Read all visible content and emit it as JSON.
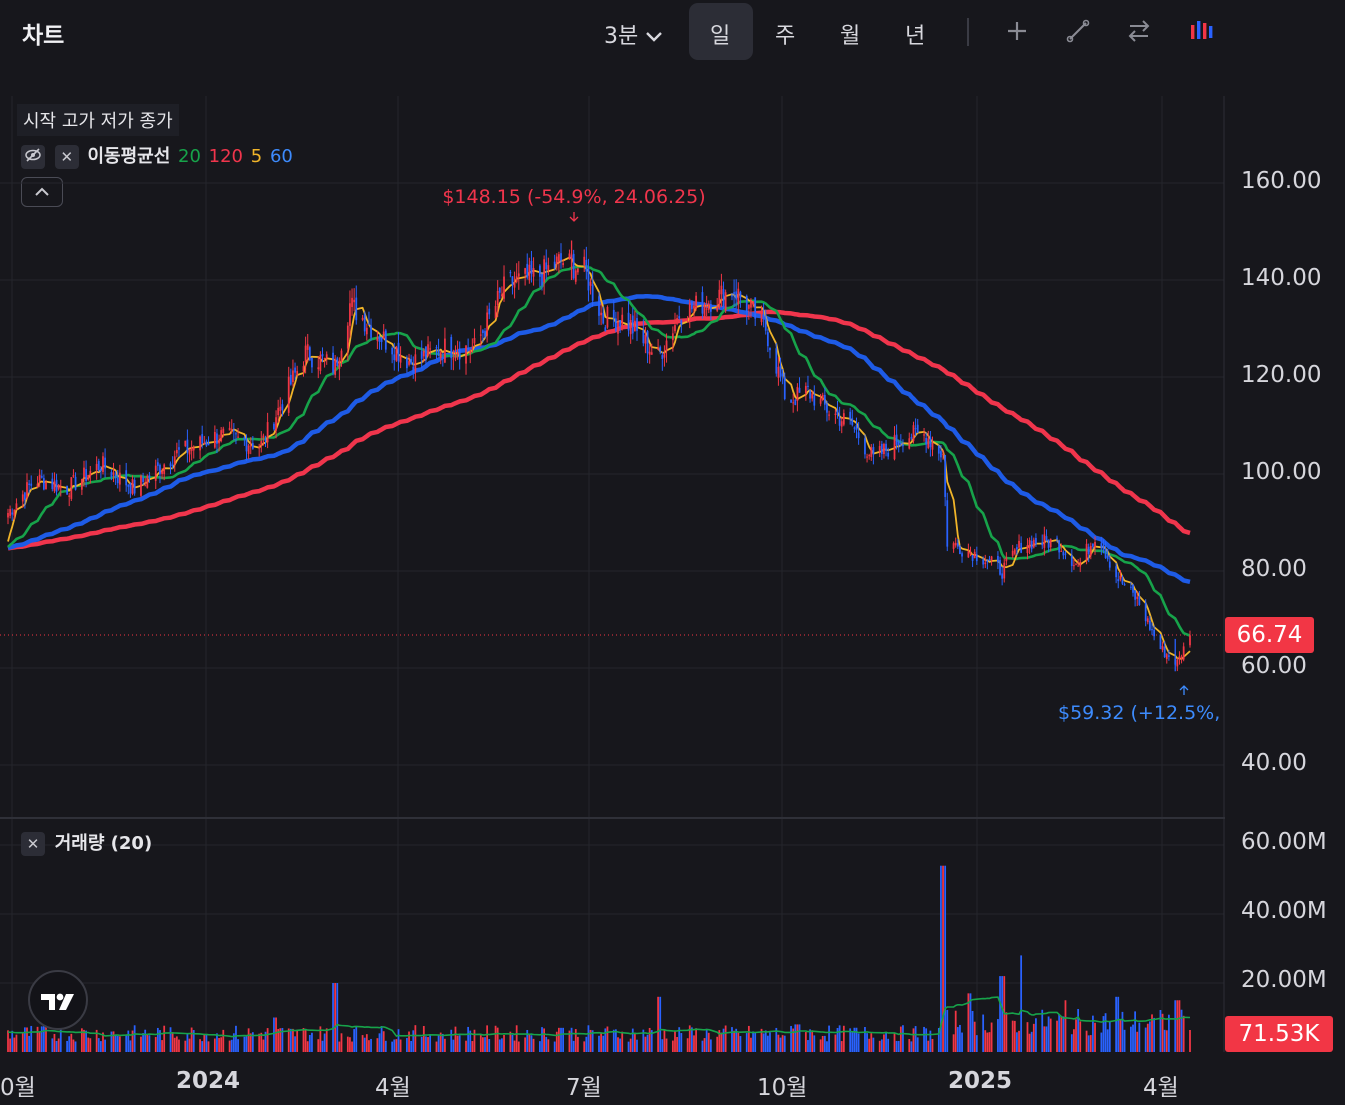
{
  "header": {
    "title": "차트",
    "interval_label": "3분",
    "periods": [
      "일",
      "주",
      "월",
      "년"
    ],
    "active_period": "일"
  },
  "tools": [
    "plus-icon",
    "line-tool-icon",
    "compare-icon",
    "candles-icon",
    "trash-icon",
    "fullscreen-icon"
  ],
  "legend": {
    "ohlc": "시작 고가 저가 종가",
    "ma_label": "이동평균선",
    "ma_periods": [
      "20",
      "120",
      "5",
      "60"
    ],
    "volume_label": "거래량 (20)"
  },
  "colors": {
    "up": "#f23645",
    "down": "#2962ff",
    "ma5": "#f0b429",
    "ma20": "#17a34a",
    "ma60": "#1e5be6",
    "ma120": "#f0354c",
    "vol_ma": "#17a34a",
    "low_annotation": "#3d8bfd"
  },
  "annotations": {
    "high": "$148.15 (-54.9%, 24.06.25)",
    "low": "$59.32 (+12.5%, 2"
  },
  "last_price": "66.74",
  "last_volume": "71.53K",
  "price_axis": [
    "160.00",
    "140.00",
    "120.00",
    "100.00",
    "80.00",
    "60.00",
    "40.00"
  ],
  "volume_axis": [
    "60.00M",
    "40.00M",
    "20.00M"
  ],
  "time_axis": [
    "0월",
    "2024",
    "4월",
    "7월",
    "10월",
    "2025",
    "4월"
  ],
  "chart_data": [
    {
      "type": "candlestick",
      "title": "",
      "x": [
        "2023-10",
        "2023-11",
        "2023-12",
        "2024-01",
        "2024-02",
        "2024-03",
        "2024-04",
        "2024-05",
        "2024-06",
        "2024-07",
        "2024-08",
        "2024-09",
        "2024-10",
        "2024-11",
        "2024-12",
        "2025-01",
        "2025-02",
        "2025-03",
        "2025-04"
      ],
      "close_anchors": [
        [
          "2023-10-02",
          92
        ],
        [
          "2023-10-15",
          99
        ],
        [
          "2023-10-30",
          97
        ],
        [
          "2023-11-15",
          102
        ],
        [
          "2023-12-01",
          97
        ],
        [
          "2023-12-20",
          104
        ],
        [
          "2024-01-10",
          108
        ],
        [
          "2024-01-30",
          106
        ],
        [
          "2024-02-20",
          125
        ],
        [
          "2024-03-05",
          122
        ],
        [
          "2024-03-12",
          135
        ],
        [
          "2024-03-25",
          129
        ],
        [
          "2024-04-10",
          123
        ],
        [
          "2024-04-25",
          126
        ],
        [
          "2024-05-10",
          126
        ],
        [
          "2024-05-25",
          139
        ],
        [
          "2024-06-10",
          141
        ],
        [
          "2024-06-20",
          144
        ],
        [
          "2024-07-01",
          142
        ],
        [
          "2024-07-10",
          132
        ],
        [
          "2024-07-20",
          132
        ],
        [
          "2024-08-05",
          124
        ],
        [
          "2024-08-15",
          133
        ],
        [
          "2024-08-30",
          136
        ],
        [
          "2024-09-10",
          138
        ],
        [
          "2024-09-25",
          130
        ],
        [
          "2024-10-05",
          115
        ],
        [
          "2024-10-15",
          117
        ],
        [
          "2024-10-25",
          113
        ],
        [
          "2024-11-05",
          110
        ],
        [
          "2024-11-15",
          103
        ],
        [
          "2024-11-30",
          108
        ],
        [
          "2024-12-10",
          108
        ],
        [
          "2024-12-18",
          104
        ],
        [
          "2024-12-20",
          86
        ],
        [
          "2025-01-05",
          83
        ],
        [
          "2025-01-15",
          80
        ],
        [
          "2025-01-25",
          86
        ],
        [
          "2025-02-10",
          86
        ],
        [
          "2025-02-20",
          81
        ],
        [
          "2025-03-01",
          88
        ],
        [
          "2025-03-10",
          79
        ],
        [
          "2025-03-20",
          74
        ],
        [
          "2025-03-31",
          64
        ],
        [
          "2025-04-08",
          61
        ],
        [
          "2025-04-14",
          66.74
        ]
      ],
      "moving_averages": [
        {
          "name": "20",
          "color": "#17a34a"
        },
        {
          "name": "120",
          "color": "#f0354c"
        },
        {
          "name": "5",
          "color": "#f0b429"
        },
        {
          "name": "60",
          "color": "#1e5be6"
        }
      ],
      "high": 148.15,
      "high_date": "24.06.25",
      "low": 59.32,
      "last": 66.74,
      "ylim": [
        30,
        175
      ],
      "y_ticks": [
        160,
        140,
        120,
        100,
        80,
        60,
        40
      ],
      "grid": true
    },
    {
      "type": "bar",
      "title": "거래량 (20)",
      "x": [
        "2023-10",
        "2023-11",
        "2023-12",
        "2024-01",
        "2024-02",
        "2024-03",
        "2024-04",
        "2024-05",
        "2024-06",
        "2024-07",
        "2024-08",
        "2024-09",
        "2024-10",
        "2024-11",
        "2024-12",
        "2025-01",
        "2025-02",
        "2025-03",
        "2025-04"
      ],
      "typical_volume_m": 6,
      "spikes_m": [
        [
          "2023-10-20",
          9
        ],
        [
          "2024-02-05",
          10
        ],
        [
          "2024-03-05",
          20
        ],
        [
          "2024-06-20",
          7
        ],
        [
          "2024-08-05",
          16
        ],
        [
          "2024-10-10",
          8
        ],
        [
          "2024-12-18",
          54
        ],
        [
          "2024-12-30",
          17
        ],
        [
          "2025-01-15",
          22
        ],
        [
          "2025-01-25",
          28
        ],
        [
          "2025-02-15",
          15
        ],
        [
          "2025-03-10",
          16
        ],
        [
          "2025-04-08",
          15
        ]
      ],
      "last": "71.53K",
      "ylim": [
        0,
        65
      ],
      "y_ticks": [
        60,
        40,
        20
      ]
    }
  ]
}
